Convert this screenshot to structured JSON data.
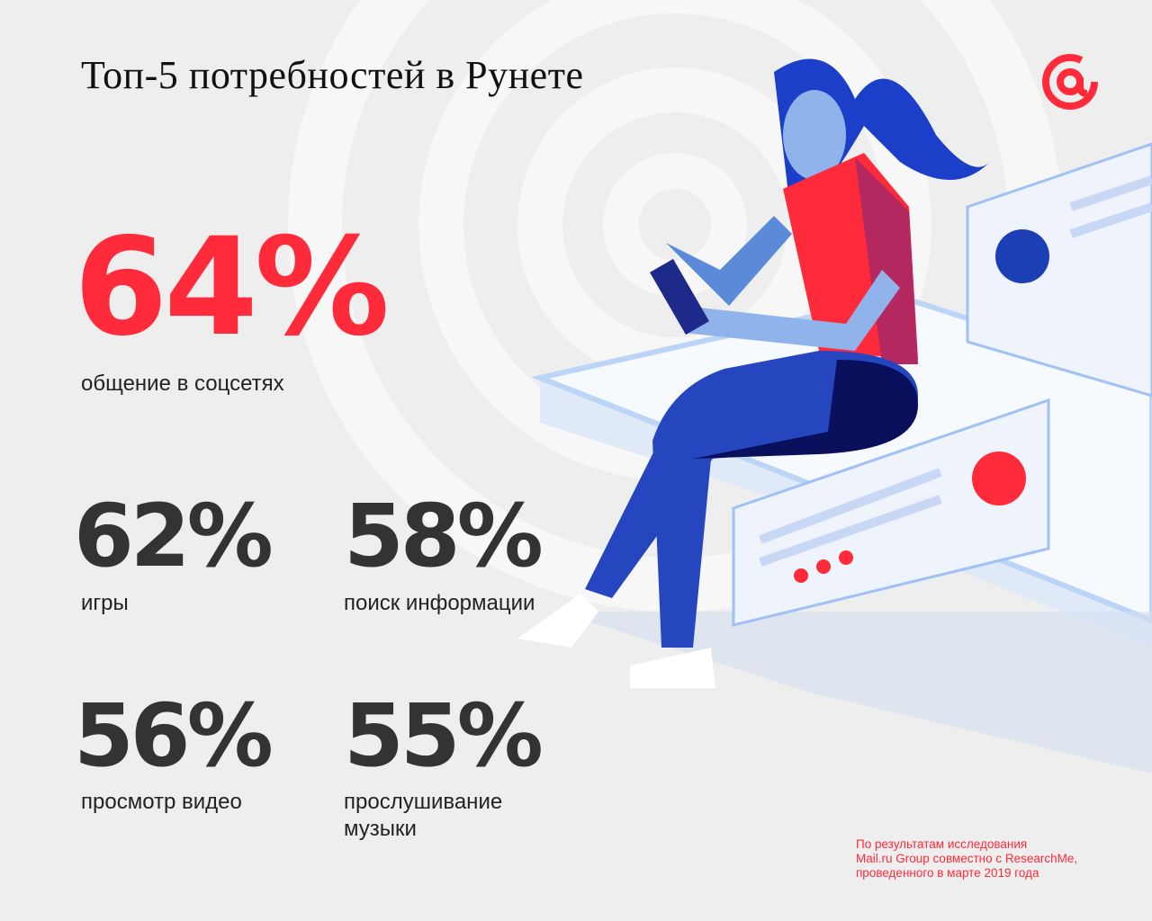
{
  "title": "Топ-5 потребностей в Рунете",
  "stats": [
    {
      "value": "64%",
      "label": "общение в соцсетях"
    },
    {
      "value": "62%",
      "label": "игры"
    },
    {
      "value": "58%",
      "label": "поиск информации"
    },
    {
      "value": "56%",
      "label": "просмотр видео"
    },
    {
      "value": "55%",
      "label_line1": "прослушивание",
      "label_line2": "музыки"
    }
  ],
  "footnote": {
    "line1": "По результатам исследования",
    "line2": "Mail.ru Group совместно с ResearchMe,",
    "line3": "проведенного в марте 2019 года"
  },
  "logo": "@",
  "colors": {
    "accent": "#ff2a3a",
    "text": "#333333",
    "background": "#eeeeee"
  }
}
